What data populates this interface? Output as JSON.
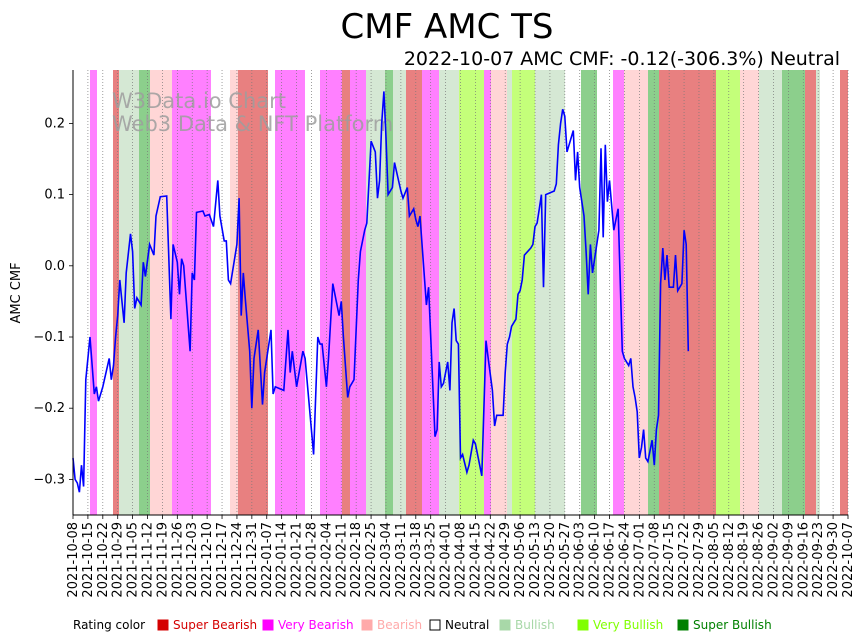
{
  "chart_data": {
    "type": "line",
    "title": "CMF AMC TS",
    "subtitle": "2022-10-07 AMC CMF: -0.12(-306.3%) Neutral",
    "ylabel": "AMC CMF",
    "xlabel": "",
    "ylim": [
      -0.35,
      0.275
    ],
    "yticks": [
      -0.3,
      -0.2,
      -0.1,
      0.0,
      0.1,
      0.2
    ],
    "ytick_labels": [
      "−0.3",
      "−0.2",
      "−0.1",
      "0.0",
      "0.1",
      "0.2"
    ],
    "x_start": "2021-10-08",
    "x_end": "2022-10-07",
    "xtick_labels": [
      "2021-10-08",
      "2021-10-15",
      "2021-10-22",
      "2021-10-29",
      "2021-11-05",
      "2021-11-12",
      "2021-11-19",
      "2021-11-26",
      "2021-12-03",
      "2021-12-10",
      "2021-12-17",
      "2021-12-24",
      "2021-12-31",
      "2022-01-07",
      "2022-01-14",
      "2022-01-21",
      "2022-01-28",
      "2022-02-04",
      "2022-02-11",
      "2022-02-18",
      "2022-02-25",
      "2022-03-04",
      "2022-03-11",
      "2022-03-18",
      "2022-03-25",
      "2022-04-01",
      "2022-04-08",
      "2022-04-15",
      "2022-04-22",
      "2022-04-29",
      "2022-05-06",
      "2022-05-13",
      "2022-05-20",
      "2022-05-27",
      "2022-06-03",
      "2022-06-10",
      "2022-06-17",
      "2022-06-24",
      "2022-07-01",
      "2022-07-08",
      "2022-07-15",
      "2022-07-22",
      "2022-07-29",
      "2022-08-05",
      "2022-08-12",
      "2022-08-19",
      "2022-08-26",
      "2022-09-02",
      "2022-09-09",
      "2022-09-16",
      "2022-09-23",
      "2022-09-30",
      "2022-10-07"
    ],
    "series": [
      {
        "name": "AMC CMF",
        "color": "#0000ff",
        "points": [
          [
            "2021-10-08",
            -0.27
          ],
          [
            "2021-10-09",
            -0.3
          ],
          [
            "2021-10-10",
            -0.305
          ],
          [
            "2021-10-11",
            -0.318
          ],
          [
            "2021-10-12",
            -0.28
          ],
          [
            "2021-10-13",
            -0.31
          ],
          [
            "2021-10-14",
            -0.16
          ],
          [
            "2021-10-16",
            -0.1
          ],
          [
            "2021-10-18",
            -0.18
          ],
          [
            "2021-10-19",
            -0.17
          ],
          [
            "2021-10-20",
            -0.19
          ],
          [
            "2021-10-22",
            -0.17
          ],
          [
            "2021-10-25",
            -0.13
          ],
          [
            "2021-10-26",
            -0.16
          ],
          [
            "2021-10-27",
            -0.14
          ],
          [
            "2021-10-28",
            -0.1
          ],
          [
            "2021-10-29",
            -0.07
          ],
          [
            "2021-10-30",
            -0.02
          ],
          [
            "2021-11-01",
            -0.08
          ],
          [
            "2021-11-02",
            -0.01
          ],
          [
            "2021-11-04",
            0.045
          ],
          [
            "2021-11-05",
            0.02
          ],
          [
            "2021-11-06",
            -0.06
          ],
          [
            "2021-11-07",
            -0.045
          ],
          [
            "2021-11-09",
            -0.055
          ],
          [
            "2021-11-10",
            0.005
          ],
          [
            "2021-11-11",
            -0.015
          ],
          [
            "2021-11-13",
            0.03
          ],
          [
            "2021-11-15",
            0.015
          ],
          [
            "2021-11-16",
            0.07
          ],
          [
            "2021-11-18",
            0.097
          ],
          [
            "2021-11-21",
            0.098
          ],
          [
            "2021-11-23",
            -0.075
          ],
          [
            "2021-11-24",
            0.03
          ],
          [
            "2021-11-26",
            0.005
          ],
          [
            "2021-11-27",
            -0.04
          ],
          [
            "2021-11-28",
            0.01
          ],
          [
            "2021-11-29",
            0.0
          ],
          [
            "2021-12-02",
            -0.12
          ],
          [
            "2021-12-03",
            -0.01
          ],
          [
            "2021-12-04",
            -0.02
          ],
          [
            "2021-12-05",
            0.075
          ],
          [
            "2021-12-08",
            0.077
          ],
          [
            "2021-12-09",
            0.07
          ],
          [
            "2021-12-11",
            0.072
          ],
          [
            "2021-12-13",
            0.055
          ],
          [
            "2021-12-15",
            0.12
          ],
          [
            "2021-12-16",
            0.07
          ],
          [
            "2021-12-18",
            0.035
          ],
          [
            "2021-12-19",
            0.035
          ],
          [
            "2021-12-20",
            -0.02
          ],
          [
            "2021-12-21",
            -0.025
          ],
          [
            "2021-12-24",
            0.03
          ],
          [
            "2021-12-25",
            0.095
          ],
          [
            "2021-12-26",
            -0.07
          ],
          [
            "2021-12-27",
            -0.01
          ],
          [
            "2021-12-28",
            -0.05
          ],
          [
            "2021-12-30",
            -0.12
          ],
          [
            "2021-12-31",
            -0.2
          ],
          [
            "2022-01-01",
            -0.13
          ],
          [
            "2022-01-03",
            -0.09
          ],
          [
            "2022-01-05",
            -0.195
          ],
          [
            "2022-01-06",
            -0.15
          ],
          [
            "2022-01-09",
            -0.09
          ],
          [
            "2022-01-10",
            -0.18
          ],
          [
            "2022-01-11",
            -0.17
          ],
          [
            "2022-01-15",
            -0.175
          ],
          [
            "2022-01-17",
            -0.09
          ],
          [
            "2022-01-18",
            -0.15
          ],
          [
            "2022-01-19",
            -0.12
          ],
          [
            "2022-01-21",
            -0.17
          ],
          [
            "2022-01-24",
            -0.12
          ],
          [
            "2022-01-25",
            -0.13
          ],
          [
            "2022-01-29",
            -0.265
          ],
          [
            "2022-01-31",
            -0.1
          ],
          [
            "2022-02-01",
            -0.11
          ],
          [
            "2022-02-02",
            -0.11
          ],
          [
            "2022-02-04",
            -0.17
          ],
          [
            "2022-02-05",
            -0.13
          ],
          [
            "2022-02-07",
            -0.025
          ],
          [
            "2022-02-08",
            -0.04
          ],
          [
            "2022-02-10",
            -0.07
          ],
          [
            "2022-02-11",
            -0.05
          ],
          [
            "2022-02-12",
            -0.1
          ],
          [
            "2022-02-14",
            -0.185
          ],
          [
            "2022-02-15",
            -0.17
          ],
          [
            "2022-02-17",
            -0.16
          ],
          [
            "2022-02-19",
            -0.02
          ],
          [
            "2022-02-20",
            0.02
          ],
          [
            "2022-02-22",
            0.05
          ],
          [
            "2022-02-23",
            0.06
          ],
          [
            "2022-02-25",
            0.175
          ],
          [
            "2022-02-27",
            0.16
          ],
          [
            "2022-02-28",
            0.095
          ],
          [
            "2022-03-01",
            0.12
          ],
          [
            "2022-03-02",
            0.2
          ],
          [
            "2022-03-03",
            0.245
          ],
          [
            "2022-03-04",
            0.18
          ],
          [
            "2022-03-05",
            0.1
          ],
          [
            "2022-03-07",
            0.11
          ],
          [
            "2022-03-08",
            0.145
          ],
          [
            "2022-03-11",
            0.105
          ],
          [
            "2022-03-12",
            0.095
          ],
          [
            "2022-03-14",
            0.11
          ],
          [
            "2022-03-15",
            0.07
          ],
          [
            "2022-03-17",
            0.08
          ],
          [
            "2022-03-18",
            0.065
          ],
          [
            "2022-03-19",
            0.055
          ],
          [
            "2022-03-20",
            0.07
          ],
          [
            "2022-03-23",
            -0.055
          ],
          [
            "2022-03-24",
            -0.03
          ],
          [
            "2022-03-27",
            -0.24
          ],
          [
            "2022-03-28",
            -0.23
          ],
          [
            "2022-03-29",
            -0.135
          ],
          [
            "2022-03-30",
            -0.17
          ],
          [
            "2022-03-31",
            -0.165
          ],
          [
            "2022-04-02",
            -0.135
          ],
          [
            "2022-04-03",
            -0.175
          ],
          [
            "2022-04-04",
            -0.08
          ],
          [
            "2022-04-05",
            -0.06
          ],
          [
            "2022-04-06",
            -0.105
          ],
          [
            "2022-04-07",
            -0.11
          ],
          [
            "2022-04-08",
            -0.27
          ],
          [
            "2022-04-09",
            -0.265
          ],
          [
            "2022-04-11",
            -0.29
          ],
          [
            "2022-04-12",
            -0.28
          ],
          [
            "2022-04-14",
            -0.245
          ],
          [
            "2022-04-15",
            -0.25
          ],
          [
            "2022-04-17",
            -0.28
          ],
          [
            "2022-04-18",
            -0.295
          ],
          [
            "2022-04-20",
            -0.105
          ],
          [
            "2022-04-21",
            -0.13
          ],
          [
            "2022-04-23",
            -0.175
          ],
          [
            "2022-04-24",
            -0.225
          ],
          [
            "2022-04-25",
            -0.21
          ],
          [
            "2022-04-28",
            -0.21
          ],
          [
            "2022-04-29",
            -0.15
          ],
          [
            "2022-04-30",
            -0.11
          ],
          [
            "2022-05-01",
            -0.1
          ],
          [
            "2022-05-02",
            -0.085
          ],
          [
            "2022-05-04",
            -0.075
          ],
          [
            "2022-05-05",
            -0.04
          ],
          [
            "2022-05-06",
            -0.035
          ],
          [
            "2022-05-07",
            -0.02
          ],
          [
            "2022-05-08",
            0.015
          ],
          [
            "2022-05-11",
            0.025
          ],
          [
            "2022-05-12",
            0.03
          ],
          [
            "2022-05-13",
            0.055
          ],
          [
            "2022-05-14",
            0.06
          ],
          [
            "2022-05-15",
            0.08
          ],
          [
            "2022-05-16",
            0.1
          ],
          [
            "2022-05-17",
            -0.03
          ],
          [
            "2022-05-18",
            0.1
          ],
          [
            "2022-05-22",
            0.105
          ],
          [
            "2022-05-23",
            0.115
          ],
          [
            "2022-05-24",
            0.17
          ],
          [
            "2022-05-25",
            0.2
          ],
          [
            "2022-05-26",
            0.22
          ],
          [
            "2022-05-27",
            0.21
          ],
          [
            "2022-05-28",
            0.16
          ],
          [
            "2022-05-29",
            0.17
          ],
          [
            "2022-05-30",
            0.18
          ],
          [
            "2022-05-31",
            0.19
          ],
          [
            "2022-06-01",
            0.12
          ],
          [
            "2022-06-02",
            0.16
          ],
          [
            "2022-06-03",
            0.11
          ],
          [
            "2022-06-05",
            0.07
          ],
          [
            "2022-06-06",
            0.02
          ],
          [
            "2022-06-07",
            -0.04
          ],
          [
            "2022-06-08",
            0.03
          ],
          [
            "2022-06-09",
            -0.01
          ],
          [
            "2022-06-12",
            0.05
          ],
          [
            "2022-06-13",
            0.165
          ],
          [
            "2022-06-14",
            0.04
          ],
          [
            "2022-06-15",
            0.17
          ],
          [
            "2022-06-16",
            0.09
          ],
          [
            "2022-06-17",
            0.12
          ],
          [
            "2022-06-19",
            0.05
          ],
          [
            "2022-06-21",
            0.08
          ],
          [
            "2022-06-23",
            -0.12
          ],
          [
            "2022-06-24",
            -0.13
          ],
          [
            "2022-06-26",
            -0.14
          ],
          [
            "2022-06-27",
            -0.13
          ],
          [
            "2022-06-28",
            -0.17
          ],
          [
            "2022-06-29",
            -0.185
          ],
          [
            "2022-06-30",
            -0.205
          ],
          [
            "2022-07-01",
            -0.27
          ],
          [
            "2022-07-02",
            -0.255
          ],
          [
            "2022-07-03",
            -0.23
          ],
          [
            "2022-07-04",
            -0.27
          ],
          [
            "2022-07-05",
            -0.275
          ],
          [
            "2022-07-06",
            -0.26
          ],
          [
            "2022-07-07",
            -0.245
          ],
          [
            "2022-07-08",
            -0.28
          ],
          [
            "2022-07-09",
            -0.23
          ],
          [
            "2022-07-10",
            -0.21
          ],
          [
            "2022-07-11",
            -0.025
          ],
          [
            "2022-07-12",
            0.025
          ],
          [
            "2022-07-13",
            -0.02
          ],
          [
            "2022-07-14",
            0.015
          ],
          [
            "2022-07-15",
            -0.03
          ],
          [
            "2022-07-17",
            -0.03
          ],
          [
            "2022-07-18",
            0.015
          ],
          [
            "2022-07-19",
            -0.035
          ],
          [
            "2022-07-21",
            -0.025
          ],
          [
            "2022-07-22",
            0.05
          ],
          [
            "2022-07-23",
            0.03
          ],
          [
            "2022-07-24",
            -0.12
          ]
        ]
      }
    ],
    "background_bands": [],
    "legend": {
      "title": "Rating color",
      "entries": [
        {
          "label": "Super Bearish",
          "color": "#d40000"
        },
        {
          "label": "Very Bearish",
          "color": "#ff00ff"
        },
        {
          "label": "Bearish",
          "color": "#ffaaaa"
        },
        {
          "label": "Neutral",
          "color": "#ffffff"
        },
        {
          "label": "Bullish",
          "color": "#a8d8a8"
        },
        {
          "label": "Very Bullish",
          "color": "#80ff00"
        },
        {
          "label": "Super Bullish",
          "color": "#008000"
        }
      ]
    }
  },
  "watermark": {
    "line1": "W3Data.io Chart",
    "line2": "Web3 Data & NFT Platform"
  },
  "colors": {
    "line": "#0000ff",
    "super_bearish": "#d40000",
    "very_bearish": "#ff00ff",
    "bearish": "#ffaaaa",
    "neutral": "#ffffff",
    "bullish": "#a8d8a8",
    "very_bullish": "#80ff00",
    "super_bullish": "#008000"
  }
}
